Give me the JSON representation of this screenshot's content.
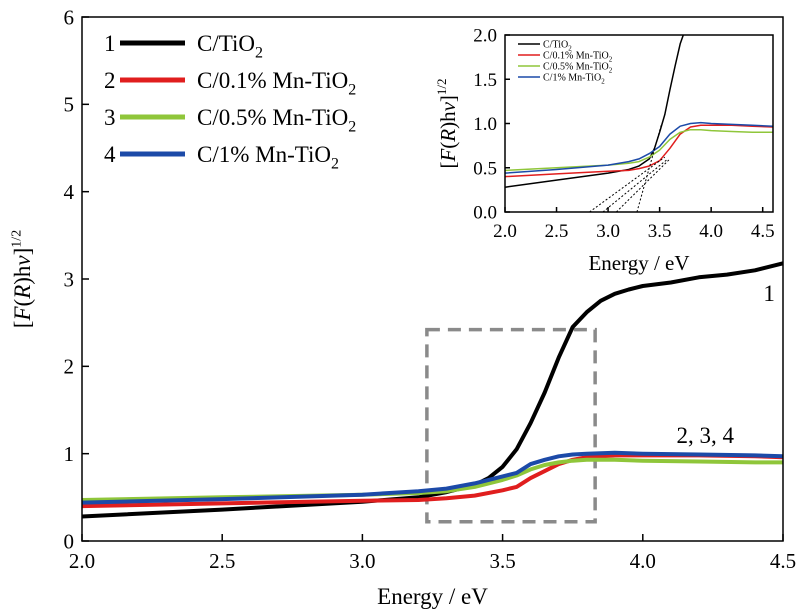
{
  "chart_data": [
    {
      "type": "line",
      "xlabel": "Energy / eV",
      "ylabel": "[F(R)hν]^1/2",
      "xlim": [
        2.0,
        4.5
      ],
      "ylim": [
        0,
        6
      ],
      "x_ticks": [
        "2.0",
        "2.5",
        "3.0",
        "3.5",
        "4.0",
        "4.5"
      ],
      "y_ticks": [
        "0",
        "1",
        "2",
        "3",
        "4",
        "5",
        "6"
      ],
      "grid": false,
      "legend_position": "top-left",
      "series": [
        {
          "name": "C/TiO2",
          "legend_index": "1",
          "color": "#000000",
          "points": [
            [
              2.0,
              0.28
            ],
            [
              2.5,
              0.36
            ],
            [
              3.0,
              0.45
            ],
            [
              3.2,
              0.5
            ],
            [
              3.3,
              0.56
            ],
            [
              3.4,
              0.64
            ],
            [
              3.45,
              0.72
            ],
            [
              3.5,
              0.85
            ],
            [
              3.55,
              1.05
            ],
            [
              3.6,
              1.35
            ],
            [
              3.65,
              1.7
            ],
            [
              3.7,
              2.1
            ],
            [
              3.75,
              2.45
            ],
            [
              3.8,
              2.62
            ],
            [
              3.85,
              2.75
            ],
            [
              3.9,
              2.83
            ],
            [
              3.95,
              2.88
            ],
            [
              4.0,
              2.92
            ],
            [
              4.1,
              2.96
            ],
            [
              4.2,
              3.02
            ],
            [
              4.3,
              3.05
            ],
            [
              4.4,
              3.1
            ],
            [
              4.5,
              3.18
            ]
          ]
        },
        {
          "name": "C/0.1% Mn-TiO2",
          "legend_index": "2",
          "color": "#e01e1e",
          "points": [
            [
              2.0,
              0.4
            ],
            [
              2.5,
              0.43
            ],
            [
              3.0,
              0.46
            ],
            [
              3.2,
              0.47
            ],
            [
              3.3,
              0.49
            ],
            [
              3.4,
              0.52
            ],
            [
              3.5,
              0.58
            ],
            [
              3.55,
              0.62
            ],
            [
              3.6,
              0.72
            ],
            [
              3.65,
              0.8
            ],
            [
              3.7,
              0.88
            ],
            [
              3.75,
              0.93
            ],
            [
              3.8,
              0.96
            ],
            [
              3.9,
              0.98
            ],
            [
              4.0,
              0.98
            ],
            [
              4.2,
              0.98
            ],
            [
              4.4,
              0.97
            ],
            [
              4.5,
              0.96
            ]
          ]
        },
        {
          "name": "C/0.5% Mn-TiO2",
          "legend_index": "3",
          "color": "#8fc63a",
          "points": [
            [
              2.0,
              0.47
            ],
            [
              2.5,
              0.5
            ],
            [
              3.0,
              0.53
            ],
            [
              3.2,
              0.55
            ],
            [
              3.3,
              0.57
            ],
            [
              3.4,
              0.62
            ],
            [
              3.5,
              0.7
            ],
            [
              3.55,
              0.75
            ],
            [
              3.6,
              0.82
            ],
            [
              3.65,
              0.87
            ],
            [
              3.7,
              0.9
            ],
            [
              3.75,
              0.92
            ],
            [
              3.8,
              0.93
            ],
            [
              3.9,
              0.93
            ],
            [
              4.0,
              0.92
            ],
            [
              4.2,
              0.91
            ],
            [
              4.4,
              0.9
            ],
            [
              4.5,
              0.9
            ]
          ]
        },
        {
          "name": "C/1% Mn-TiO2",
          "legend_index": "4",
          "color": "#1c4aa8",
          "points": [
            [
              2.0,
              0.44
            ],
            [
              2.5,
              0.48
            ],
            [
              3.0,
              0.53
            ],
            [
              3.2,
              0.57
            ],
            [
              3.3,
              0.6
            ],
            [
              3.4,
              0.66
            ],
            [
              3.5,
              0.74
            ],
            [
              3.55,
              0.78
            ],
            [
              3.6,
              0.88
            ],
            [
              3.65,
              0.93
            ],
            [
              3.7,
              0.97
            ],
            [
              3.75,
              0.99
            ],
            [
              3.8,
              1.0
            ],
            [
              3.9,
              1.01
            ],
            [
              4.0,
              1.0
            ],
            [
              4.2,
              0.99
            ],
            [
              4.4,
              0.98
            ],
            [
              4.5,
              0.97
            ]
          ]
        }
      ],
      "annotations": [
        {
          "text": "1",
          "x": 4.43,
          "y": 2.75
        },
        {
          "text": "2, 3, 4",
          "x": 4.12,
          "y": 1.12
        }
      ],
      "zoom_box": {
        "x": [
          3.23,
          3.83
        ],
        "y": [
          0.22,
          2.42
        ]
      }
    },
    {
      "type": "line",
      "xlabel": "Energy / eV",
      "ylabel": "[F(R)hν]^1/2",
      "xlim": [
        2.0,
        4.6
      ],
      "ylim": [
        0,
        2.0
      ],
      "x_ticks": [
        "2.0",
        "2.5",
        "3.0",
        "3.5",
        "4.0",
        "4.5"
      ],
      "y_ticks": [
        "0.0",
        "0.5",
        "1.0",
        "1.5",
        "2.0"
      ],
      "grid": false,
      "legend_position": "top-left",
      "series": [
        {
          "name": "C/TiO2",
          "color": "#000000",
          "points": [
            [
              2.0,
              0.28
            ],
            [
              2.5,
              0.36
            ],
            [
              3.0,
              0.44
            ],
            [
              3.2,
              0.48
            ],
            [
              3.3,
              0.52
            ],
            [
              3.4,
              0.6
            ],
            [
              3.45,
              0.72
            ],
            [
              3.5,
              0.9
            ],
            [
              3.55,
              1.1
            ],
            [
              3.6,
              1.38
            ],
            [
              3.65,
              1.65
            ],
            [
              3.7,
              1.9
            ],
            [
              3.73,
              2.0
            ]
          ]
        },
        {
          "name": "C/0.1% Mn-TiO2",
          "color": "#e01e1e",
          "points": [
            [
              2.0,
              0.4
            ],
            [
              2.5,
              0.43
            ],
            [
              3.0,
              0.46
            ],
            [
              3.2,
              0.47
            ],
            [
              3.3,
              0.49
            ],
            [
              3.4,
              0.52
            ],
            [
              3.5,
              0.58
            ],
            [
              3.6,
              0.72
            ],
            [
              3.7,
              0.88
            ],
            [
              3.8,
              0.96
            ],
            [
              3.9,
              0.98
            ],
            [
              4.0,
              0.98
            ],
            [
              4.2,
              0.98
            ],
            [
              4.4,
              0.97
            ],
            [
              4.6,
              0.96
            ]
          ]
        },
        {
          "name": "C/0.5% Mn-TiO2",
          "color": "#8fc63a",
          "points": [
            [
              2.0,
              0.47
            ],
            [
              2.5,
              0.5
            ],
            [
              3.0,
              0.53
            ],
            [
              3.2,
              0.55
            ],
            [
              3.3,
              0.57
            ],
            [
              3.4,
              0.62
            ],
            [
              3.5,
              0.7
            ],
            [
              3.6,
              0.82
            ],
            [
              3.7,
              0.9
            ],
            [
              3.8,
              0.93
            ],
            [
              3.9,
              0.93
            ],
            [
              4.0,
              0.92
            ],
            [
              4.2,
              0.91
            ],
            [
              4.4,
              0.9
            ],
            [
              4.6,
              0.9
            ]
          ]
        },
        {
          "name": "C/1% Mn-TiO2",
          "color": "#1c4aa8",
          "points": [
            [
              2.0,
              0.44
            ],
            [
              2.5,
              0.48
            ],
            [
              3.0,
              0.53
            ],
            [
              3.2,
              0.57
            ],
            [
              3.3,
              0.6
            ],
            [
              3.4,
              0.66
            ],
            [
              3.5,
              0.74
            ],
            [
              3.6,
              0.88
            ],
            [
              3.7,
              0.97
            ],
            [
              3.8,
              1.0
            ],
            [
              3.9,
              1.01
            ],
            [
              4.0,
              1.0
            ],
            [
              4.2,
              0.99
            ],
            [
              4.4,
              0.98
            ],
            [
              4.6,
              0.97
            ]
          ]
        }
      ],
      "tangent_lines": [
        {
          "from": [
            2.82,
            0.0
          ],
          "to": [
            3.55,
            0.62
          ]
        },
        {
          "from": [
            2.95,
            0.0
          ],
          "to": [
            3.58,
            0.6
          ]
        },
        {
          "from": [
            3.08,
            0.0
          ],
          "to": [
            3.6,
            0.6
          ]
        },
        {
          "from": [
            3.28,
            0.0
          ],
          "to": [
            3.52,
            1.0
          ]
        }
      ]
    }
  ]
}
